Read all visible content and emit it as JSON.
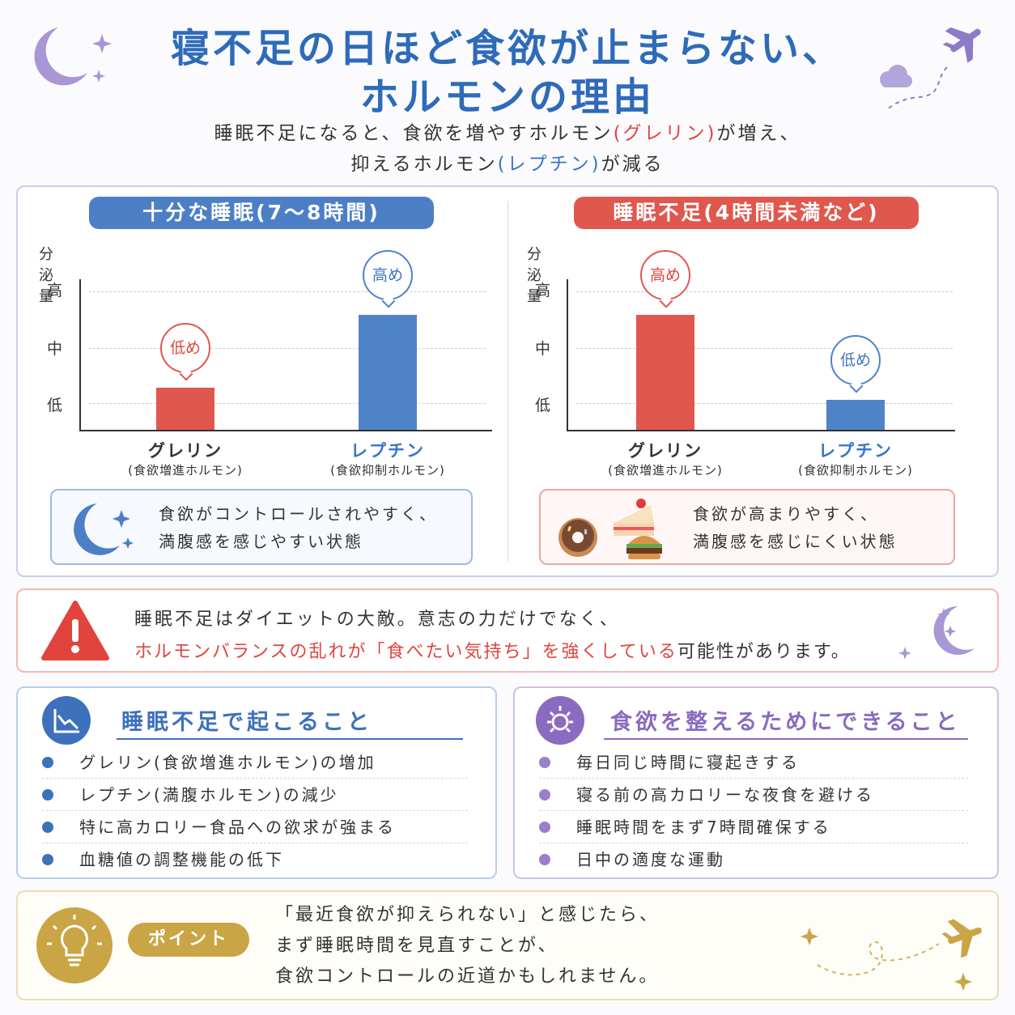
{
  "title": {
    "line1": "寝不足の日ほど食欲が止まらない、",
    "line2": "ホルモンの理由"
  },
  "lead": {
    "l1_a": "睡眠不足になると、食欲を増やすホルモン",
    "l1_b": "(グレリン)",
    "l1_c": "が増え、",
    "l2_a": "抑えるホルモン",
    "l2_b": "(レプチン)",
    "l2_c": "が減る"
  },
  "left": {
    "header": "十分な睡眠(7〜8時間)",
    "note_l1": "食欲がコントロールされやすく、",
    "note_l2": "満腹感を感じやすい状態"
  },
  "right": {
    "header": "睡眠不足(4時間未満など)",
    "note_l1": "食欲が高まりやすく、",
    "note_l2": "満腹感を感じにくい状態"
  },
  "chart_data": [
    {
      "type": "bar",
      "ylabel": "分泌量",
      "yticks": [
        "低",
        "中",
        "高"
      ],
      "categories": [
        "グレリン",
        "レプチン"
      ],
      "category_subs": [
        "(食欲増進ホルモン)",
        "(食欲抑制ホルモン)"
      ],
      "values": [
        1,
        2.7
      ],
      "value_labels": [
        "低め",
        "高め"
      ],
      "colors": [
        "#e0574e",
        "#4f83c8"
      ]
    },
    {
      "type": "bar",
      "ylabel": "分泌量",
      "yticks": [
        "低",
        "中",
        "高"
      ],
      "categories": [
        "グレリン",
        "レプチン"
      ],
      "category_subs": [
        "(食欲増進ホルモン)",
        "(食欲抑制ホルモン)"
      ],
      "values": [
        2.7,
        0.7
      ],
      "value_labels": [
        "高め",
        "低め"
      ],
      "colors": [
        "#e0574e",
        "#4f83c8"
      ]
    }
  ],
  "warning": {
    "l1": "睡眠不足はダイエットの大敵。意志の力だけでなく、",
    "l2_red": "ホルモンバランスの乱れが「食べたい気持ち」を強くしている",
    "l2_rest": "可能性があります。"
  },
  "causes": {
    "title": "睡眠不足で起こること",
    "items": [
      "グレリン(食欲増進ホルモン)の増加",
      "レプチン(満腹ホルモン)の減少",
      "特に高カロリー食品への欲求が強まる",
      "血糖値の調整機能の低下"
    ]
  },
  "actions": {
    "title": "食欲を整えるためにできること",
    "items": [
      "毎日同じ時間に寝起きする",
      "寝る前の高カロリーな夜食を避ける",
      "睡眠時間をまず7時間確保する",
      "日中の適度な運動"
    ]
  },
  "point": {
    "badge": "ポイント",
    "l1": "「最近食欲が抑えられない」と感じたら、",
    "l2": "まず睡眠時間を見直すことが、",
    "l3": "食欲コントロールの近道かもしれません。"
  },
  "colors": {
    "blue": "#3a76c4",
    "red": "#e0443c",
    "purple": "#8a6bbf",
    "gold": "#c9a545"
  },
  "icons": [
    "moon-icon",
    "sparkle-icon",
    "airplane-icon",
    "cloud-icon",
    "donut-icon",
    "cake-icon",
    "burger-icon",
    "warning-icon",
    "chart-down-icon",
    "sun-icon",
    "lightbulb-icon"
  ]
}
